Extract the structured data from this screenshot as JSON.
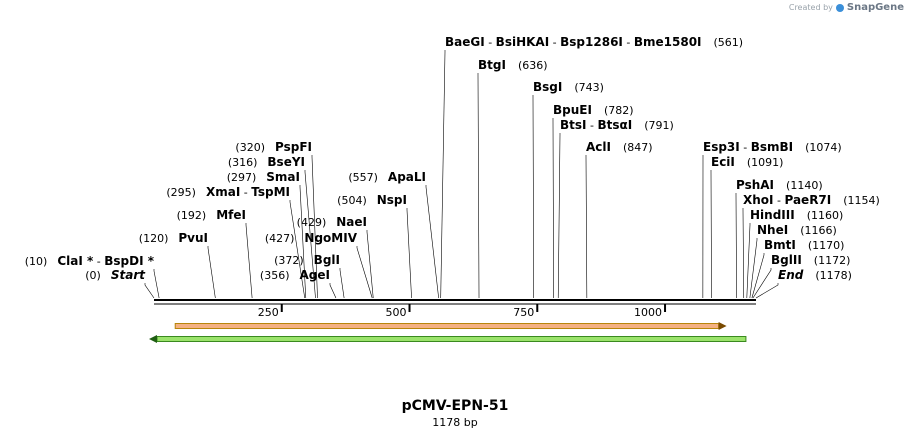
{
  "watermark": {
    "prefix": "Created by",
    "brand": "SnapGene"
  },
  "plasmid": {
    "name": "pCMV-EPN-51",
    "length_label": "1178 bp",
    "length_bp": 1178
  },
  "axis": {
    "ticks": [
      {
        "bp": 250,
        "label": "250"
      },
      {
        "bp": 500,
        "label": "500"
      },
      {
        "bp": 750,
        "label": "750"
      },
      {
        "bp": 1000,
        "label": "1000"
      }
    ]
  },
  "features": [
    {
      "name": "orange-feature",
      "direction": "forward",
      "start_bp": 20,
      "end_bp": 1140,
      "fill": "#f4b183",
      "stroke": "#b8860b",
      "arrow": "#7a4a00"
    },
    {
      "name": "green-feature",
      "direction": "reverse",
      "start_bp": 0,
      "end_bp": 1170,
      "fill": "#9be36b",
      "stroke": "#3a8a1f",
      "arrow": "#1f5e12"
    }
  ],
  "sites": [
    {
      "parts": [
        {
          "text": "BaeGI"
        },
        {
          "text": "  -  ",
          "sep": true
        },
        {
          "text": "BsiHKAI"
        },
        {
          "text": "  -  ",
          "sep": true
        },
        {
          "text": "Bsp1286I"
        },
        {
          "text": "  -  ",
          "sep": true
        },
        {
          "text": "Bme1580I"
        }
      ],
      "pos": "(561)",
      "bp": 561,
      "side": "right"
    },
    {
      "parts": [
        {
          "text": "BtgI"
        }
      ],
      "pos": "(636)",
      "bp": 636,
      "side": "right"
    },
    {
      "parts": [
        {
          "text": "BsgI"
        }
      ],
      "pos": "(743)",
      "bp": 743,
      "side": "right"
    },
    {
      "parts": [
        {
          "text": "BpuEI"
        }
      ],
      "pos": "(782)",
      "bp": 782,
      "side": "right"
    },
    {
      "parts": [
        {
          "text": "BtsI"
        },
        {
          "text": "  -  ",
          "sep": true
        },
        {
          "text": "BtsαI"
        }
      ],
      "pos": "(791)",
      "bp": 791,
      "side": "right"
    },
    {
      "parts": [
        {
          "text": "AclI"
        }
      ],
      "pos": "(847)",
      "bp": 847,
      "side": "right"
    },
    {
      "parts": [
        {
          "text": "Esp3I"
        },
        {
          "text": "  -  ",
          "sep": true
        },
        {
          "text": "BsmBI"
        }
      ],
      "pos": "(1074)",
      "bp": 1074,
      "side": "right"
    },
    {
      "parts": [
        {
          "text": "EciI"
        }
      ],
      "pos": "(1091)",
      "bp": 1091,
      "side": "right"
    },
    {
      "parts": [
        {
          "text": "PshAI"
        }
      ],
      "pos": "(1140)",
      "bp": 1140,
      "side": "right"
    },
    {
      "parts": [
        {
          "text": "XhoI"
        },
        {
          "text": "  -  ",
          "sep": true
        },
        {
          "text": "PaeR7I"
        }
      ],
      "pos": "(1154)",
      "bp": 1154,
      "side": "right"
    },
    {
      "parts": [
        {
          "text": "HindIII"
        }
      ],
      "pos": "(1160)",
      "bp": 1160,
      "side": "right"
    },
    {
      "parts": [
        {
          "text": "NheI"
        }
      ],
      "pos": "(1166)",
      "bp": 1166,
      "side": "right"
    },
    {
      "parts": [
        {
          "text": "BmtI"
        }
      ],
      "pos": "(1170)",
      "bp": 1170,
      "side": "right"
    },
    {
      "parts": [
        {
          "text": "BglII"
        }
      ],
      "pos": "(1172)",
      "bp": 1172,
      "side": "right"
    },
    {
      "parts": [
        {
          "text": "End",
          "italic": true
        }
      ],
      "pos": "(1178)",
      "bp": 1178,
      "side": "right"
    },
    {
      "parts": [
        {
          "text": "PspFI"
        }
      ],
      "pos": "(320)",
      "bp": 320,
      "side": "left"
    },
    {
      "parts": [
        {
          "text": "BseYI"
        }
      ],
      "pos": "(316)",
      "bp": 316,
      "side": "left"
    },
    {
      "parts": [
        {
          "text": "SmaI"
        }
      ],
      "pos": "(297)",
      "bp": 297,
      "side": "left"
    },
    {
      "parts": [
        {
          "text": "XmaI"
        },
        {
          "text": "  -  ",
          "sep": true
        },
        {
          "text": "TspMI"
        }
      ],
      "pos": "(295)",
      "bp": 295,
      "side": "left"
    },
    {
      "parts": [
        {
          "text": "MfeI"
        }
      ],
      "pos": "(192)",
      "bp": 192,
      "side": "left"
    },
    {
      "parts": [
        {
          "text": "PvuI"
        }
      ],
      "pos": "(120)",
      "bp": 120,
      "side": "left"
    },
    {
      "parts": [
        {
          "text": "ClaI *"
        },
        {
          "text": "  -  ",
          "sep": true
        },
        {
          "text": "BspDI *"
        }
      ],
      "pos": "(10)",
      "bp": 10,
      "side": "left"
    },
    {
      "parts": [
        {
          "text": "Start",
          "italic": true
        }
      ],
      "pos": "(0)",
      "bp": 0,
      "side": "left"
    },
    {
      "parts": [
        {
          "text": "ApaLI"
        }
      ],
      "pos": "(557)",
      "bp": 557,
      "side": "left"
    },
    {
      "parts": [
        {
          "text": "NspI"
        }
      ],
      "pos": "(504)",
      "bp": 504,
      "side": "left"
    },
    {
      "parts": [
        {
          "text": "NaeI"
        }
      ],
      "pos": "(429)",
      "bp": 429,
      "side": "left"
    },
    {
      "parts": [
        {
          "text": "NgoMIV"
        }
      ],
      "pos": "(427)",
      "bp": 427,
      "side": "left"
    },
    {
      "parts": [
        {
          "text": "BglI"
        }
      ],
      "pos": "(372)",
      "bp": 372,
      "side": "left"
    },
    {
      "parts": [
        {
          "text": "AgeI"
        }
      ],
      "pos": "(356)",
      "bp": 356,
      "side": "left"
    }
  ]
}
